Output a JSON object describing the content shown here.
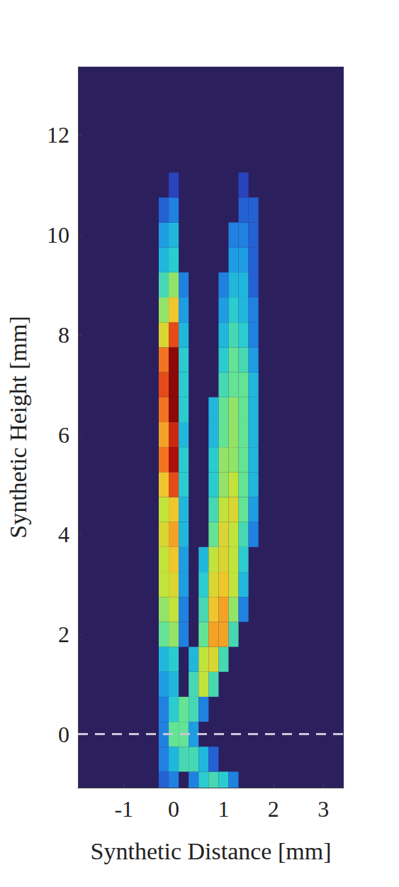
{
  "chart_data": {
    "type": "heatmap",
    "x_label": "Synthetic Distance [mm]",
    "y_label": "Synthetic Height [mm]",
    "xlim": [
      -1.92,
      3.41
    ],
    "ylim": [
      -1.07,
      13.37
    ],
    "xticks": [
      -1,
      0,
      1,
      2,
      3
    ],
    "yticks": [
      0,
      2,
      4,
      6,
      8,
      10,
      12
    ],
    "grid": false,
    "hlines": [
      0
    ],
    "cell_size": [
      0.2,
      0.5
    ],
    "value_range": [
      0,
      1
    ],
    "cells": [
      [
        -0.2,
        -1,
        0.15
      ],
      [
        0,
        -1,
        0.2
      ],
      [
        0.4,
        -1,
        0.2
      ],
      [
        0.6,
        -1,
        0.35
      ],
      [
        0.8,
        -1,
        0.4
      ],
      [
        1.0,
        -1,
        0.35
      ],
      [
        1.2,
        -1,
        0.2
      ],
      [
        -0.2,
        -0.5,
        0.2
      ],
      [
        0,
        -0.5,
        0.3
      ],
      [
        0.2,
        -0.5,
        0.4
      ],
      [
        0.4,
        -0.5,
        0.4
      ],
      [
        0.6,
        -0.5,
        0.3
      ],
      [
        0.8,
        -0.5,
        0.15
      ],
      [
        -0.2,
        0,
        0.2
      ],
      [
        0,
        0,
        0.45
      ],
      [
        0.2,
        0,
        0.45
      ],
      [
        0.4,
        0,
        0.25
      ],
      [
        -0.2,
        0.5,
        0.2
      ],
      [
        0,
        0.5,
        0.35
      ],
      [
        0.2,
        0.5,
        0.45
      ],
      [
        0.4,
        0.5,
        0.4
      ],
      [
        0.6,
        0.5,
        0.2
      ],
      [
        -0.2,
        1,
        0.25
      ],
      [
        0,
        1,
        0.3
      ],
      [
        0.4,
        1,
        0.4
      ],
      [
        0.6,
        1,
        0.55
      ],
      [
        0.8,
        1,
        0.4
      ],
      [
        -0.2,
        1.5,
        0.3
      ],
      [
        0,
        1.5,
        0.35
      ],
      [
        0.4,
        1.5,
        0.3
      ],
      [
        0.6,
        1.5,
        0.55
      ],
      [
        0.8,
        1.5,
        0.6
      ],
      [
        1.0,
        1.5,
        0.4
      ],
      [
        -0.2,
        2,
        0.45
      ],
      [
        0,
        2,
        0.5
      ],
      [
        0.2,
        2,
        0.2
      ],
      [
        0.6,
        2,
        0.45
      ],
      [
        0.8,
        2,
        0.7
      ],
      [
        1.0,
        2,
        0.7
      ],
      [
        1.2,
        2,
        0.4
      ],
      [
        -0.2,
        2.5,
        0.5
      ],
      [
        0,
        2.5,
        0.55
      ],
      [
        0.2,
        2.5,
        0.2
      ],
      [
        0.6,
        2.5,
        0.4
      ],
      [
        0.8,
        2.5,
        0.65
      ],
      [
        1.0,
        2.5,
        0.7
      ],
      [
        1.2,
        2.5,
        0.5
      ],
      [
        1.4,
        2.5,
        0.2
      ],
      [
        -0.2,
        3,
        0.55
      ],
      [
        0,
        3,
        0.6
      ],
      [
        0.2,
        3,
        0.25
      ],
      [
        0.6,
        3,
        0.35
      ],
      [
        0.8,
        3,
        0.6
      ],
      [
        1.0,
        3,
        0.65
      ],
      [
        1.2,
        3,
        0.55
      ],
      [
        1.4,
        3,
        0.3
      ],
      [
        -0.2,
        3.5,
        0.55
      ],
      [
        0,
        3.5,
        0.65
      ],
      [
        0.2,
        3.5,
        0.25
      ],
      [
        0.6,
        3.5,
        0.3
      ],
      [
        0.8,
        3.5,
        0.55
      ],
      [
        1.0,
        3.5,
        0.6
      ],
      [
        1.2,
        3.5,
        0.55
      ],
      [
        1.4,
        3.5,
        0.35
      ],
      [
        -0.2,
        4,
        0.6
      ],
      [
        0,
        4,
        0.7
      ],
      [
        0.2,
        4,
        0.3
      ],
      [
        0.8,
        4,
        0.45
      ],
      [
        1.0,
        4,
        0.6
      ],
      [
        1.2,
        4,
        0.55
      ],
      [
        1.4,
        4,
        0.4
      ],
      [
        1.6,
        4,
        0.2
      ],
      [
        -0.2,
        4.5,
        0.55
      ],
      [
        0,
        4.5,
        0.65
      ],
      [
        0.2,
        4.5,
        0.3
      ],
      [
        0.8,
        4.5,
        0.4
      ],
      [
        1.0,
        4.5,
        0.55
      ],
      [
        1.2,
        4.5,
        0.6
      ],
      [
        1.4,
        4.5,
        0.45
      ],
      [
        1.6,
        4.5,
        0.25
      ],
      [
        -0.2,
        5,
        0.65
      ],
      [
        0,
        5,
        0.8
      ],
      [
        0.2,
        5,
        0.35
      ],
      [
        0.8,
        5,
        0.35
      ],
      [
        1.0,
        5,
        0.5
      ],
      [
        1.2,
        5,
        0.55
      ],
      [
        1.4,
        5,
        0.45
      ],
      [
        1.6,
        5,
        0.3
      ],
      [
        -0.2,
        5.5,
        0.75
      ],
      [
        0,
        5.5,
        0.9
      ],
      [
        0.2,
        5.5,
        0.35
      ],
      [
        0.8,
        5.5,
        0.35
      ],
      [
        1.0,
        5.5,
        0.5
      ],
      [
        1.2,
        5.5,
        0.5
      ],
      [
        1.4,
        5.5,
        0.45
      ],
      [
        1.6,
        5.5,
        0.3
      ],
      [
        -0.2,
        6,
        0.7
      ],
      [
        0,
        6,
        0.85
      ],
      [
        0.2,
        6,
        0.3
      ],
      [
        0.8,
        6,
        0.3
      ],
      [
        1.0,
        6,
        0.45
      ],
      [
        1.2,
        6,
        0.5
      ],
      [
        1.4,
        6,
        0.45
      ],
      [
        1.6,
        6,
        0.3
      ],
      [
        -0.2,
        6.5,
        0.75
      ],
      [
        0,
        6.5,
        0.95
      ],
      [
        0.2,
        6.5,
        0.35
      ],
      [
        0.8,
        6.5,
        0.3
      ],
      [
        1.0,
        6.5,
        0.45
      ],
      [
        1.2,
        6.5,
        0.5
      ],
      [
        1.4,
        6.5,
        0.45
      ],
      [
        1.6,
        6.5,
        0.3
      ],
      [
        -0.2,
        7,
        0.8
      ],
      [
        0,
        7,
        0.95
      ],
      [
        0.2,
        7,
        0.35
      ],
      [
        1.0,
        7,
        0.4
      ],
      [
        1.2,
        7,
        0.45
      ],
      [
        1.4,
        7,
        0.45
      ],
      [
        1.6,
        7,
        0.3
      ],
      [
        -0.2,
        7.5,
        0.75
      ],
      [
        0,
        7.5,
        0.95
      ],
      [
        0.2,
        7.5,
        0.35
      ],
      [
        1.0,
        7.5,
        0.35
      ],
      [
        1.2,
        7.5,
        0.45
      ],
      [
        1.4,
        7.5,
        0.4
      ],
      [
        1.6,
        7.5,
        0.25
      ],
      [
        -0.2,
        8,
        0.6
      ],
      [
        0,
        8,
        0.8
      ],
      [
        0.2,
        8,
        0.3
      ],
      [
        1.0,
        8,
        0.3
      ],
      [
        1.2,
        8,
        0.4
      ],
      [
        1.4,
        8,
        0.35
      ],
      [
        1.6,
        8,
        0.2
      ],
      [
        -0.2,
        8.5,
        0.5
      ],
      [
        0,
        8.5,
        0.65
      ],
      [
        0.2,
        8.5,
        0.25
      ],
      [
        1.0,
        8.5,
        0.25
      ],
      [
        1.2,
        8.5,
        0.35
      ],
      [
        1.4,
        8.5,
        0.3
      ],
      [
        1.6,
        8.5,
        0.2
      ],
      [
        -0.2,
        9,
        0.4
      ],
      [
        0,
        9,
        0.5
      ],
      [
        0.2,
        9,
        0.2
      ],
      [
        1.0,
        9,
        0.2
      ],
      [
        1.2,
        9,
        0.3
      ],
      [
        1.4,
        9,
        0.3
      ],
      [
        1.6,
        9,
        0.15
      ],
      [
        -0.2,
        9.5,
        0.3
      ],
      [
        0,
        9.5,
        0.35
      ],
      [
        1.2,
        9.5,
        0.25
      ],
      [
        1.4,
        9.5,
        0.25
      ],
      [
        1.6,
        9.5,
        0.15
      ],
      [
        -0.2,
        10,
        0.25
      ],
      [
        0,
        10,
        0.3
      ],
      [
        1.2,
        10,
        0.2
      ],
      [
        1.4,
        10,
        0.2
      ],
      [
        1.6,
        10,
        0.15
      ],
      [
        -0.2,
        10.5,
        0.15
      ],
      [
        0,
        10.5,
        0.2
      ],
      [
        1.4,
        10.5,
        0.15
      ],
      [
        1.6,
        10.5,
        0.15
      ],
      [
        0,
        11,
        0.1
      ],
      [
        1.4,
        11,
        0.1
      ]
    ]
  }
}
